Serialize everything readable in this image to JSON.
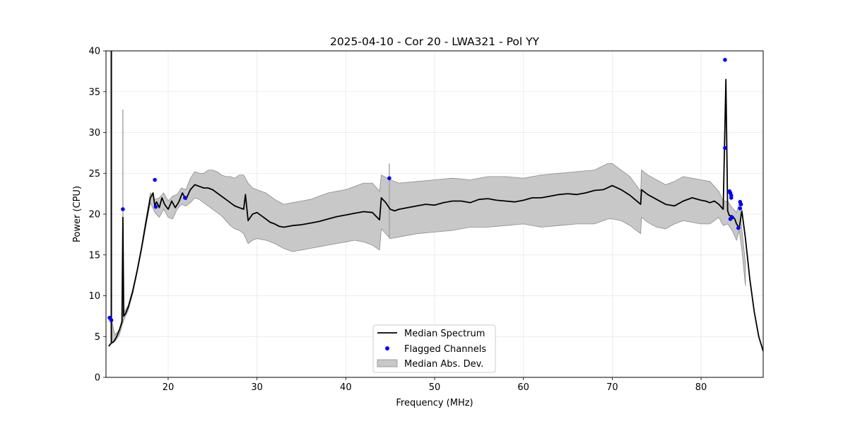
{
  "chart_data": {
    "type": "line",
    "title": "2025-04-10 - Cor 20 - LWA321 - Pol YY",
    "xlabel": "Frequency (MHz)",
    "ylabel": "Power (CPU)",
    "xlim": [
      13.0,
      87.0
    ],
    "ylim": [
      0,
      40
    ],
    "xticks": [
      20,
      30,
      40,
      50,
      60,
      70,
      80
    ],
    "xtick_labels": [
      "20",
      "30",
      "40",
      "50",
      "60",
      "70",
      "80"
    ],
    "yticks": [
      0,
      5,
      10,
      15,
      20,
      25,
      30,
      35,
      40
    ],
    "ytick_labels": [
      "0",
      "5",
      "10",
      "15",
      "20",
      "25",
      "30",
      "35",
      "40"
    ],
    "grid": true,
    "legend_position": "bottom-center",
    "colors": {
      "median": "#000000",
      "flagged": "#0000ff",
      "mad_fill": "#c8c8c8",
      "mad_edge": "#8c8c8c"
    },
    "series": [
      {
        "name": "Median Spectrum",
        "x": [
          13.3,
          13.6,
          13.8,
          14.0,
          14.2,
          14.5,
          14.8,
          14.9,
          15.0,
          15.2,
          15.5,
          16.0,
          16.5,
          17.0,
          17.5,
          18.0,
          18.3,
          18.5,
          18.7,
          19.0,
          19.3,
          19.6,
          20.0,
          20.4,
          20.8,
          21.2,
          21.6,
          22.0,
          22.5,
          23.0,
          23.5,
          24.0,
          24.5,
          25.0,
          25.5,
          26.0,
          26.5,
          27.0,
          27.5,
          28.0,
          28.5,
          28.7,
          29.0,
          29.5,
          30.0,
          30.5,
          31.0,
          31.5,
          32.0,
          32.5,
          33.0,
          34.0,
          35.0,
          36.0,
          37.0,
          38.0,
          39.0,
          40.0,
          41.0,
          42.0,
          43.0,
          43.8,
          44.0,
          44.5,
          45.0,
          45.5,
          46.0,
          47.0,
          48.0,
          49.0,
          50.0,
          51.0,
          52.0,
          53.0,
          54.0,
          55.0,
          56.0,
          57.0,
          58.0,
          59.0,
          60.0,
          61.0,
          62.0,
          63.0,
          64.0,
          65.0,
          66.0,
          67.0,
          68.0,
          69.0,
          70.0,
          71.0,
          72.0,
          73.2,
          73.3,
          74.0,
          75.0,
          76.0,
          77.0,
          78.0,
          79.0,
          80.0,
          80.5,
          81.0,
          81.5,
          82.0,
          82.5,
          82.8,
          83.0,
          83.2,
          83.5,
          83.8,
          84.0,
          84.3,
          84.6,
          85.0,
          85.5,
          86.0,
          86.5,
          87.0
        ],
        "values": [
          3.8,
          4.2,
          4.3,
          4.6,
          5.0,
          5.8,
          6.8,
          19.6,
          7.5,
          7.8,
          8.6,
          10.5,
          13.0,
          15.8,
          19.0,
          22.0,
          22.6,
          21.0,
          21.5,
          20.8,
          22.0,
          21.2,
          20.6,
          21.6,
          20.8,
          21.5,
          22.6,
          21.8,
          23.0,
          23.6,
          23.4,
          23.2,
          23.2,
          23.0,
          22.6,
          22.2,
          21.8,
          21.4,
          21.0,
          20.8,
          20.6,
          22.4,
          19.2,
          20.0,
          20.2,
          19.8,
          19.4,
          19.0,
          18.8,
          18.5,
          18.4,
          18.6,
          18.7,
          18.9,
          19.1,
          19.4,
          19.7,
          19.9,
          20.1,
          20.3,
          20.2,
          19.3,
          22.0,
          21.4,
          20.6,
          20.4,
          20.6,
          20.8,
          21.0,
          21.2,
          21.1,
          21.4,
          21.6,
          21.6,
          21.4,
          21.8,
          21.9,
          21.7,
          21.6,
          21.5,
          21.7,
          22.0,
          22.0,
          22.2,
          22.4,
          22.5,
          22.4,
          22.6,
          22.9,
          23.0,
          23.5,
          23.0,
          22.3,
          21.2,
          23.0,
          22.4,
          21.8,
          21.2,
          21.0,
          21.6,
          22.0,
          21.7,
          21.6,
          21.4,
          21.6,
          21.2,
          20.6,
          36.5,
          20.4,
          19.8,
          19.8,
          19.4,
          18.8,
          18.3,
          20.4,
          17.0,
          12.0,
          8.0,
          5.0,
          3.2
        ]
      },
      {
        "name": "Median Abs. Dev.",
        "x": [
          13.6,
          14.0,
          14.5,
          15.0,
          15.5,
          16.0,
          16.5,
          17.0,
          17.5,
          18.0,
          18.5,
          19.0,
          19.5,
          20.0,
          20.5,
          21.0,
          21.5,
          22.0,
          22.5,
          23.0,
          23.5,
          24.0,
          24.5,
          25.0,
          25.5,
          26.0,
          26.5,
          27.0,
          27.5,
          28.0,
          28.5,
          29.0,
          29.5,
          30.0,
          31.0,
          32.0,
          33.0,
          34.0,
          35.0,
          36.0,
          37.0,
          38.0,
          39.0,
          40.0,
          41.0,
          42.0,
          43.0,
          43.8,
          44.0,
          45.0,
          46.0,
          48.0,
          50.0,
          52.0,
          54.0,
          56.0,
          58.0,
          60.0,
          62.0,
          64.0,
          66.0,
          68.0,
          69.5,
          70.0,
          71.0,
          72.0,
          73.2,
          73.3,
          74.0,
          75.0,
          76.0,
          77.0,
          78.0,
          79.0,
          80.0,
          81.0,
          82.0,
          82.5,
          83.0,
          83.5,
          84.0,
          84.3,
          84.6,
          85.0
        ],
        "upper": [
          7.2,
          5.2,
          5.8,
          8.0,
          8.8,
          10.8,
          13.3,
          16.2,
          19.5,
          22.6,
          21.8,
          22.0,
          22.6,
          21.6,
          22.2,
          22.4,
          23.2,
          23.0,
          24.4,
          25.2,
          25.0,
          25.0,
          25.4,
          25.4,
          25.2,
          24.8,
          24.6,
          24.6,
          24.4,
          24.8,
          24.8,
          23.8,
          23.2,
          23.0,
          22.6,
          21.8,
          21.2,
          21.4,
          21.6,
          21.8,
          22.2,
          22.6,
          22.8,
          23.0,
          23.4,
          23.8,
          23.8,
          22.8,
          24.8,
          24.2,
          23.8,
          24.0,
          24.2,
          24.4,
          24.2,
          24.6,
          24.6,
          24.4,
          24.8,
          25.0,
          25.2,
          25.4,
          26.2,
          26.2,
          25.4,
          24.6,
          22.8,
          25.4,
          24.8,
          24.2,
          23.6,
          24.0,
          24.6,
          24.4,
          24.2,
          24.0,
          22.8,
          21.6,
          21.6,
          20.8,
          20.2,
          21.4,
          18.2,
          14.0
        ],
        "lower": [
          4.2,
          4.4,
          5.2,
          7.0,
          8.2,
          10.2,
          12.8,
          15.6,
          18.6,
          21.4,
          20.2,
          19.6,
          20.6,
          19.6,
          19.4,
          20.6,
          21.2,
          21.0,
          21.4,
          22.0,
          21.8,
          21.4,
          21.0,
          20.6,
          20.2,
          19.8,
          19.2,
          18.6,
          18.2,
          18.0,
          17.6,
          16.4,
          16.8,
          17.0,
          16.8,
          16.4,
          15.8,
          15.4,
          15.6,
          15.8,
          16.0,
          16.2,
          16.4,
          16.6,
          16.8,
          16.6,
          16.2,
          15.6,
          18.2,
          17.0,
          17.2,
          17.6,
          17.8,
          18.0,
          18.4,
          18.4,
          18.6,
          18.8,
          18.4,
          18.6,
          18.8,
          18.8,
          19.4,
          19.4,
          19.2,
          18.6,
          17.6,
          19.6,
          19.0,
          18.4,
          18.2,
          18.8,
          19.2,
          19.0,
          18.8,
          18.8,
          19.6,
          18.6,
          18.8,
          18.0,
          16.8,
          18.0,
          15.6,
          11.2
        ]
      },
      {
        "name": "Flagged Channels",
        "x": [
          13.4,
          13.6,
          14.9,
          18.5,
          18.6,
          21.9,
          44.9,
          82.7,
          82.7,
          83.2,
          83.3,
          83.4,
          83.4,
          83.5,
          83.3,
          84.2,
          84.4,
          84.5,
          84.4
        ],
        "values": [
          7.3,
          7.0,
          20.6,
          24.2,
          20.9,
          22.0,
          24.4,
          38.9,
          28.1,
          22.8,
          22.6,
          22.3,
          22.0,
          19.6,
          19.4,
          18.3,
          21.5,
          21.2,
          20.7
        ]
      }
    ],
    "spikes": [
      {
        "x": 13.6,
        "value": 40.0,
        "base": 4.3
      },
      {
        "x": 14.9,
        "value": 32.8,
        "base": 6.8
      },
      {
        "x": 44.9,
        "value": 26.2,
        "base": 17.0
      }
    ],
    "legend": [
      {
        "label": "Median Spectrum",
        "kind": "line"
      },
      {
        "label": "Flagged Channels",
        "kind": "marker"
      },
      {
        "label": "Median Abs. Dev.",
        "kind": "patch"
      }
    ]
  }
}
